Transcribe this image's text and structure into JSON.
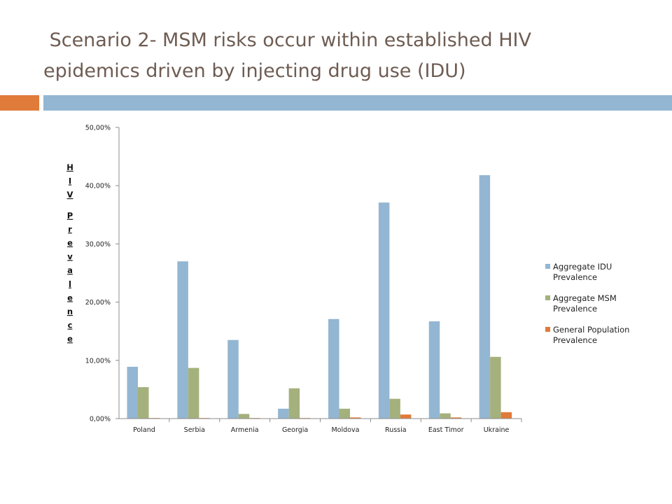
{
  "slide": {
    "title_line1": " Scenario 2- MSM risks occur within established HIV",
    "title_line2": "epidemics driven by injecting drug use (IDU)"
  },
  "colors": {
    "title": "#6e5c52",
    "accent_bar": "#e07b39",
    "header_bar": "#93b6d2"
  },
  "chart_data": {
    "type": "bar",
    "title": "",
    "xlabel": "",
    "ylabel": "HIV Prevalence",
    "categories": [
      "Poland",
      "Serbia",
      "Armenia",
      "Georgia",
      "Moldova",
      "Russia",
      "East Timor",
      "Ukraine"
    ],
    "series": [
      {
        "name": "Aggregate IDU Prevalence",
        "color": "#93b6d2",
        "values": [
          0.089,
          0.27,
          0.135,
          0.017,
          0.171,
          0.371,
          0.167,
          0.418
        ]
      },
      {
        "name": "Aggregate MSM Prevalence",
        "color": "#a4b17c",
        "values": [
          0.054,
          0.087,
          0.008,
          0.052,
          0.017,
          0.034,
          0.009,
          0.106
        ]
      },
      {
        "name": "General Population Prevalence",
        "color": "#e07b39",
        "values": [
          0.001,
          0.001,
          0.001,
          0.001,
          0.002,
          0.007,
          0.002,
          0.011
        ]
      }
    ],
    "ylim": [
      0,
      0.5
    ],
    "yticks": [
      "0,00%",
      "10,00%",
      "20,00%",
      "30,00%",
      "40,00%",
      "50,00%"
    ],
    "grid": false,
    "legend_position": "right"
  }
}
